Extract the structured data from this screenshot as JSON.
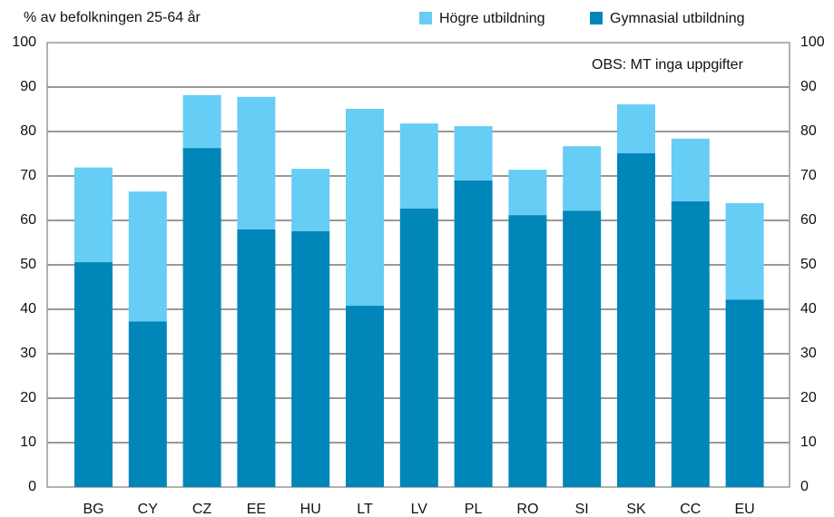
{
  "chart_data": {
    "type": "stacked_bar",
    "y_label": "% av befolkningen 25-64 år",
    "annotation": "OBS: MT inga uppgifter",
    "categories": [
      "BG",
      "CY",
      "CZ",
      "EE",
      "HU",
      "LT",
      "LV",
      "PL",
      "RO",
      "SI",
      "SK",
      "CC",
      "EU"
    ],
    "series": [
      {
        "name": "Högre utbildning",
        "color": "#66cdf5",
        "values": [
          21.3,
          29.2,
          11.9,
          29.8,
          14,
          44.3,
          19.1,
          12.2,
          10.2,
          14.5,
          11,
          14.1,
          21.7
        ]
      },
      {
        "name": "Gymnasial utbildning",
        "color": "#0086b9",
        "values": [
          50.6,
          37.3,
          76.3,
          58,
          57.6,
          40.8,
          62.7,
          69,
          61.2,
          62.2,
          75.1,
          64.3,
          42.2
        ]
      }
    ],
    "ylim": [
      0,
      100
    ],
    "yticks": [
      0,
      10,
      20,
      30,
      40,
      50,
      60,
      70,
      80,
      90,
      100
    ],
    "grid": true
  }
}
